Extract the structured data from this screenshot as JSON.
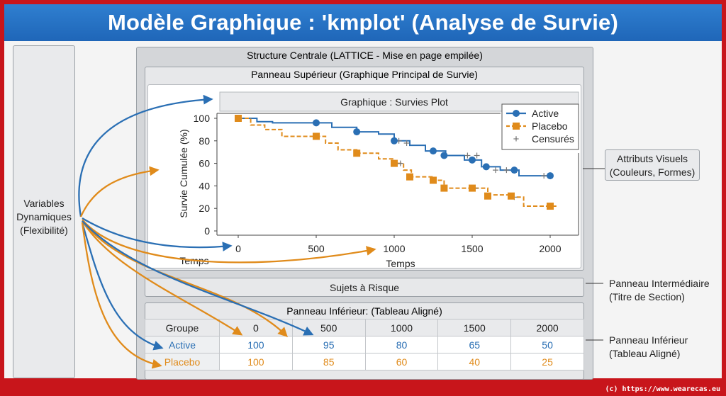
{
  "title": "Modèle Graphique : 'kmplot' (Analyse de Survie)",
  "left_label": [
    "Variables",
    "Dynamiques",
    "(Flexibilité)"
  ],
  "central_title": "Structure Centrale (LATTICE - Mise en page empilée)",
  "upper_title": "Panneau Supérieur (Graphique Principal de Survie)",
  "sujets_label": "Sujets à Risque",
  "lower_title": "Panneau Inférieur: (Tableau Aligné)",
  "attributes_label": [
    "Attributs Visuels",
    "(Couleurs, Formes)"
  ],
  "mid_note": [
    "Panneau Intermédiaire",
    "(Titre de Section)"
  ],
  "lower_note": [
    "Panneau Inférieur",
    "(Tableau Aligné)"
  ],
  "time_label_left": "Temps",
  "footer": "(c) https://www.wearecas.eu",
  "colors": {
    "active": "#2a6fb4",
    "placebo": "#e08b1b",
    "banner": "#1f66b8",
    "border": "#c8151b"
  },
  "chart_data": {
    "type": "line",
    "title": "Graphique : Survies Plot",
    "xlabel": "Temps",
    "ylabel": "Survie Cumulée (%)",
    "xlim": [
      0,
      2000
    ],
    "ylim": [
      0,
      100
    ],
    "xticks": [
      0,
      500,
      1000,
      1500,
      2000
    ],
    "yticks": [
      0,
      20,
      40,
      60,
      80,
      100
    ],
    "legend_position": "top-right",
    "legend": [
      "Active",
      "Placebo",
      "Censurés"
    ],
    "series": [
      {
        "name": "Active",
        "color": "#2a6fb4",
        "steps": [
          [
            0,
            100
          ],
          [
            120,
            97
          ],
          [
            220,
            96
          ],
          [
            500,
            96
          ],
          [
            600,
            92
          ],
          [
            760,
            88
          ],
          [
            900,
            86
          ],
          [
            1000,
            80
          ],
          [
            1100,
            76
          ],
          [
            1200,
            71
          ],
          [
            1330,
            67
          ],
          [
            1450,
            63
          ],
          [
            1560,
            57
          ],
          [
            1680,
            54
          ],
          [
            1800,
            49
          ],
          [
            2000,
            49
          ]
        ],
        "markers": [
          [
            0,
            100
          ],
          [
            500,
            96
          ],
          [
            760,
            88
          ],
          [
            1000,
            80
          ],
          [
            1250,
            71
          ],
          [
            1320,
            67
          ],
          [
            1500,
            63
          ],
          [
            1590,
            57
          ],
          [
            1770,
            54
          ],
          [
            2000,
            49
          ]
        ],
        "censored": [
          [
            1030,
            80
          ],
          [
            1080,
            78
          ],
          [
            1470,
            67
          ],
          [
            1530,
            67
          ],
          [
            1650,
            54
          ],
          [
            1720,
            54
          ],
          [
            1960,
            49
          ]
        ]
      },
      {
        "name": "Placebo",
        "color": "#e08b1b",
        "steps": [
          [
            0,
            100
          ],
          [
            80,
            94
          ],
          [
            170,
            90
          ],
          [
            280,
            84
          ],
          [
            500,
            84
          ],
          [
            560,
            78
          ],
          [
            640,
            72
          ],
          [
            760,
            69
          ],
          [
            900,
            64
          ],
          [
            1000,
            60
          ],
          [
            1060,
            54
          ],
          [
            1110,
            48
          ],
          [
            1250,
            45
          ],
          [
            1320,
            38
          ],
          [
            1550,
            38
          ],
          [
            1600,
            32
          ],
          [
            1750,
            30
          ],
          [
            1830,
            22
          ],
          [
            2040,
            22
          ]
        ],
        "markers": [
          [
            0,
            100
          ],
          [
            500,
            84
          ],
          [
            760,
            69
          ],
          [
            1000,
            60
          ],
          [
            1100,
            48
          ],
          [
            1250,
            45
          ],
          [
            1320,
            38
          ],
          [
            1500,
            38
          ],
          [
            1600,
            31
          ],
          [
            1750,
            31
          ],
          [
            2000,
            22
          ]
        ],
        "censored": [
          [
            1040,
            60
          ],
          [
            1520,
            38
          ],
          [
            1770,
            30
          ]
        ]
      }
    ]
  },
  "risk_table": {
    "header": [
      "Groupe",
      "0",
      "500",
      "1000",
      "1500",
      "2000"
    ],
    "rows": [
      {
        "label": "Active",
        "values": [
          "100",
          "95",
          "80",
          "65",
          "50"
        ]
      },
      {
        "label": "Placebo",
        "values": [
          "100",
          "85",
          "60",
          "40",
          "25"
        ]
      }
    ]
  }
}
